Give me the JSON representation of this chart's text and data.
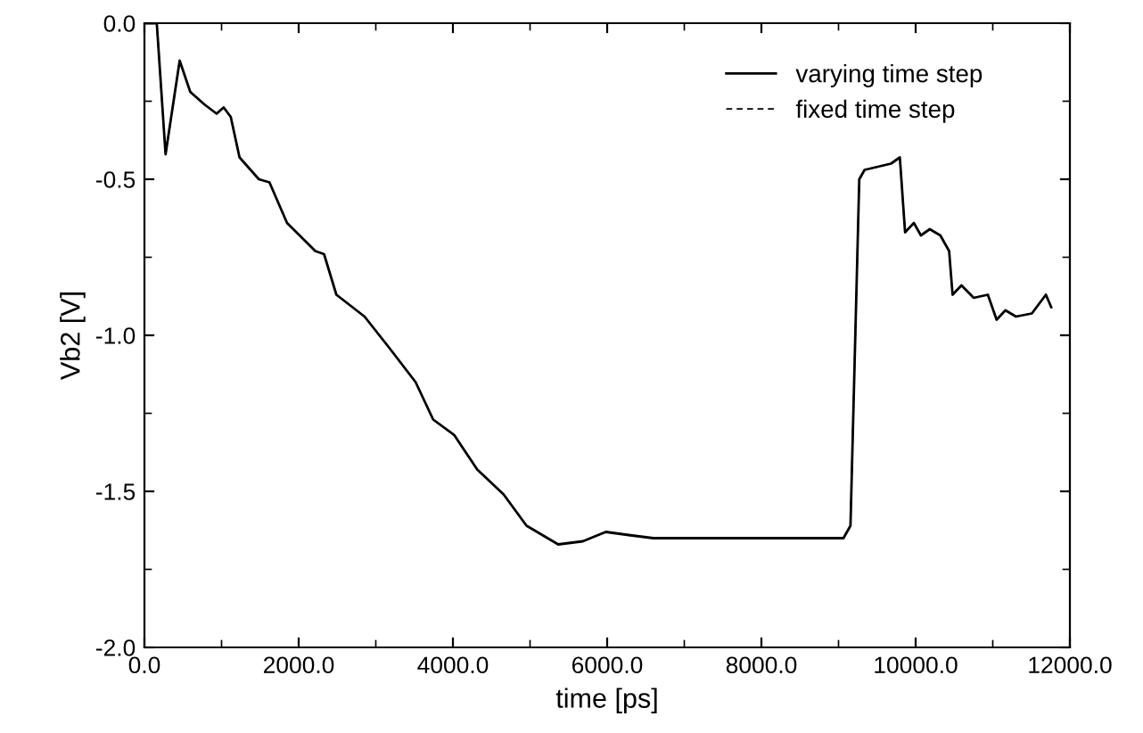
{
  "chart_data": {
    "type": "line",
    "xlabel": "time [ps]",
    "ylabel": "Vb2 [V]",
    "xlim": [
      0,
      12000
    ],
    "ylim": [
      -2.0,
      0.0
    ],
    "xticks": [
      {
        "value": 0,
        "label": "0.0"
      },
      {
        "value": 2000,
        "label": "2000.0"
      },
      {
        "value": 4000,
        "label": "4000.0"
      },
      {
        "value": 6000,
        "label": "6000.0"
      },
      {
        "value": 8000,
        "label": "8000.0"
      },
      {
        "value": 10000,
        "label": "10000.0"
      },
      {
        "value": 12000,
        "label": "12000.0"
      }
    ],
    "yticks": [
      {
        "value": -2.0,
        "label": "-2.0"
      },
      {
        "value": -1.5,
        "label": "-1.5"
      },
      {
        "value": -1.0,
        "label": "-1.0"
      },
      {
        "value": -0.5,
        "label": "-0.5"
      },
      {
        "value": 0.0,
        "label": "0.0"
      }
    ],
    "x": [
      0,
      160,
      274,
      457,
      594,
      776,
      936,
      1027,
      1119,
      1233,
      1484,
      1621,
      1849,
      2215,
      2329,
      2489,
      2854,
      3174,
      3516,
      3744,
      4018,
      4315,
      4658,
      4954,
      5365,
      5685,
      5982,
      6279,
      6598,
      7740,
      9064,
      9155,
      9269,
      9338,
      9680,
      9795,
      9863,
      9977,
      10068,
      10183,
      10320,
      10434,
      10479,
      10594,
      10753,
      10936,
      11050,
      11164,
      11301,
      11507,
      11689,
      11758
    ],
    "series": [
      {
        "name": "varying time step",
        "color": "#000000",
        "line_style": "solid",
        "values": [
          0,
          0,
          -0.42,
          -0.12,
          -0.22,
          -0.26,
          -0.29,
          -0.27,
          -0.3,
          -0.43,
          -0.5,
          -0.51,
          -0.64,
          -0.73,
          -0.74,
          -0.87,
          -0.94,
          -1.04,
          -1.15,
          -1.27,
          -1.32,
          -1.43,
          -1.51,
          -1.61,
          -1.67,
          -1.66,
          -1.63,
          -1.64,
          -1.65,
          -1.65,
          -1.65,
          -1.61,
          -0.5,
          -0.47,
          -0.45,
          -0.43,
          -0.67,
          -0.64,
          -0.68,
          -0.66,
          -0.68,
          -0.73,
          -0.87,
          -0.84,
          -0.88,
          -0.87,
          -0.95,
          -0.92,
          -0.94,
          -0.93,
          -0.87,
          -0.91
        ]
      },
      {
        "name": "fixed time step",
        "color": "#000000",
        "line_style": "dashed",
        "values": [
          0,
          0,
          -0.42,
          -0.12,
          -0.22,
          -0.26,
          -0.29,
          -0.27,
          -0.3,
          -0.43,
          -0.5,
          -0.51,
          -0.64,
          -0.73,
          -0.74,
          -0.87,
          -0.94,
          -1.04,
          -1.15,
          -1.27,
          -1.32,
          -1.43,
          -1.51,
          -1.61,
          -1.67,
          -1.66,
          -1.63,
          -1.64,
          -1.65,
          -1.65,
          -1.65,
          -1.61,
          -0.5,
          -0.47,
          -0.45,
          -0.43,
          -0.67,
          -0.64,
          -0.68,
          -0.66,
          -0.68,
          -0.73,
          -0.87,
          -0.84,
          -0.88,
          -0.87,
          -0.95,
          -0.92,
          -0.94,
          -0.93,
          -0.87,
          -0.91
        ]
      }
    ],
    "legend": "top right",
    "grid": false
  }
}
